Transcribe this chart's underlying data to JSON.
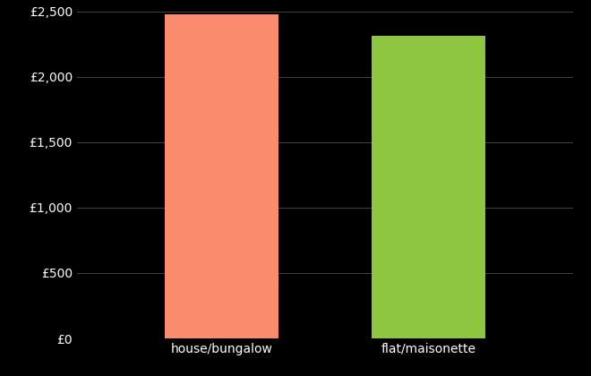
{
  "categories": [
    "house/bungalow",
    "flat/maisonette"
  ],
  "values": [
    2480,
    2310
  ],
  "bar_colors": [
    "#FA8C6E",
    "#8DC63F"
  ],
  "background_color": "#000000",
  "text_color": "#ffffff",
  "grid_color": "#444444",
  "ylim": [
    0,
    2500
  ],
  "yticks": [
    0,
    500,
    1000,
    1500,
    2000,
    2500
  ],
  "ytick_labels": [
    "£0",
    "£500",
    "£1,000",
    "£1,500",
    "£2,000",
    "£2,500"
  ],
  "bar_width": 0.55,
  "x_positions": [
    0,
    1
  ],
  "xlim": [
    -0.7,
    1.7
  ]
}
